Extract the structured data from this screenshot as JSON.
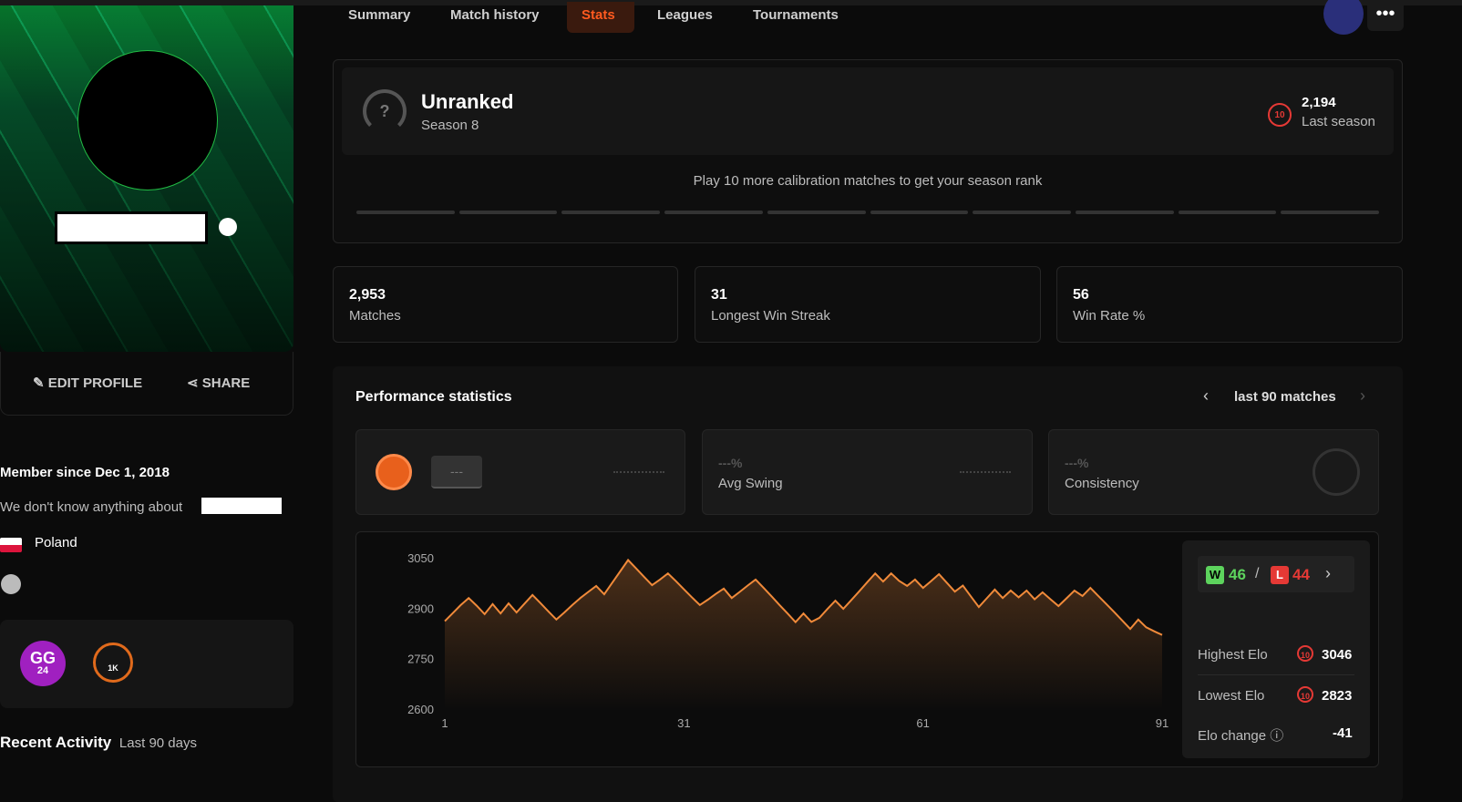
{
  "nav": {
    "tabs": [
      "Summary",
      "Match history",
      "Stats",
      "Leagues",
      "Tournaments"
    ]
  },
  "profile": {
    "actions": [
      "EDIT PROFILE",
      "SHARE"
    ],
    "member_since": "Member since Dec 1, 2018",
    "about": "We don't know anything about",
    "country": "Poland",
    "badges": [
      "GG",
      "24",
      "1K"
    ],
    "recent_activity": "Recent Activity",
    "recent_period": "Last 90 days"
  },
  "rank": {
    "title": "Unranked",
    "season": "Season 8",
    "level": "10",
    "last_elo": "2,194",
    "last_label": "Last season",
    "calibration": "Play 10 more calibration matches to get your season rank"
  },
  "stats": [
    {
      "value": "2,953",
      "label": "Matches"
    },
    {
      "value": "31",
      "label": "Longest Win Streak"
    },
    {
      "value": "56",
      "label": "Win Rate %"
    }
  ],
  "performance": {
    "title": "Performance statistics",
    "period": "last 90 matches",
    "cards": [
      {
        "value": "---"
      },
      {
        "value": "---%",
        "label": "Avg Swing"
      },
      {
        "value": "---%",
        "label": "Consistency"
      }
    ]
  },
  "summary": {
    "wins_label": "W",
    "wins": "46",
    "losses_label": "L",
    "losses": "44",
    "rows": [
      {
        "label": "Highest Elo",
        "level": "10",
        "value": "3046"
      },
      {
        "label": "Lowest Elo",
        "level": "10",
        "value": "2823"
      },
      {
        "label": "Elo change",
        "value": "-41"
      }
    ]
  },
  "chart_data": {
    "type": "line",
    "color": "#f08a3a",
    "x": [
      1,
      2,
      3,
      4,
      5,
      6,
      7,
      8,
      9,
      10,
      11,
      12,
      13,
      14,
      15,
      16,
      17,
      18,
      19,
      20,
      21,
      22,
      23,
      24,
      25,
      26,
      27,
      28,
      29,
      30,
      31,
      32,
      33,
      34,
      35,
      36,
      37,
      38,
      39,
      40,
      41,
      42,
      43,
      44,
      45,
      46,
      47,
      48,
      49,
      50,
      51,
      52,
      53,
      54,
      55,
      56,
      57,
      58,
      59,
      60,
      61,
      62,
      63,
      64,
      65,
      66,
      67,
      68,
      69,
      70,
      71,
      72,
      73,
      74,
      75,
      76,
      77,
      78,
      79,
      80,
      81,
      82,
      83,
      84,
      85,
      86,
      87,
      88,
      89,
      90,
      91
    ],
    "values": [
      2864,
      2888,
      2912,
      2933,
      2910,
      2885,
      2915,
      2887,
      2917,
      2890,
      2916,
      2942,
      2918,
      2893,
      2869,
      2890,
      2912,
      2933,
      2951,
      2969,
      2944,
      2978,
      3012,
      3046,
      3021,
      2996,
      2971,
      2988,
      3006,
      2983,
      2959,
      2935,
      2912,
      2928,
      2945,
      2961,
      2933,
      2951,
      2970,
      2988,
      2963,
      2938,
      2912,
      2887,
      2861,
      2887,
      2862,
      2874,
      2900,
      2925,
      2901,
      2927,
      2953,
      2980,
      3006,
      2982,
      3006,
      2984,
      2969,
      2988,
      2963,
      2983,
      3004,
      2978,
      2952,
      2970,
      2938,
      2906,
      2932,
      2958,
      2933,
      2955,
      2935,
      2955,
      2929,
      2950,
      2929,
      2909,
      2932,
      2955,
      2939,
      2963,
      2939,
      2915,
      2891,
      2866,
      2841,
      2869,
      2846,
      2834,
      2823
    ],
    "xlim": [
      1,
      91
    ],
    "xticks": [
      1,
      31,
      61,
      91
    ],
    "ylim": [
      2600,
      3050
    ],
    "yticks": [
      2600,
      2750,
      2900,
      3050
    ]
  }
}
